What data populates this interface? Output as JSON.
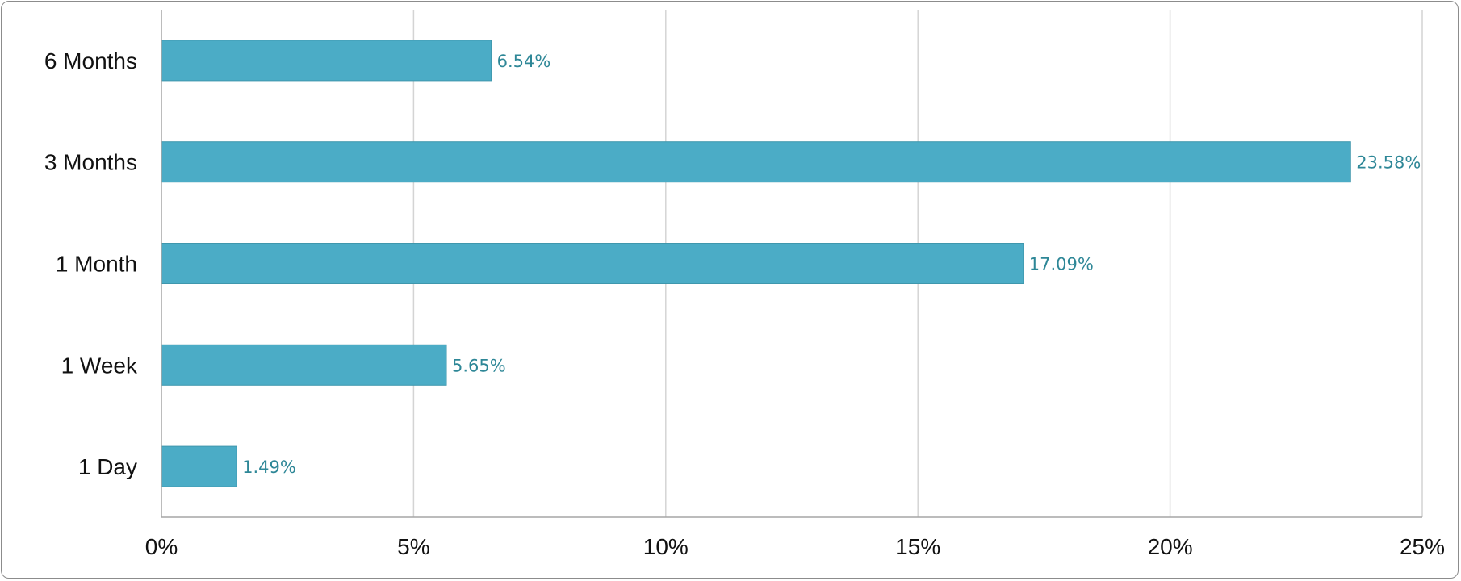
{
  "chart_data": {
    "type": "bar",
    "orientation": "horizontal",
    "title": "",
    "xlabel": "",
    "ylabel": "",
    "categories": [
      "6 Months",
      "3 Months",
      "1 Month",
      "1 Week",
      "1 Day"
    ],
    "values": [
      6.54,
      23.58,
      17.09,
      5.65,
      1.49
    ],
    "data_labels": [
      "6.54%",
      "23.58%",
      "17.09%",
      "5.65%",
      "1.49%"
    ],
    "xlim": [
      0,
      25
    ],
    "x_ticks": [
      0,
      5,
      10,
      15,
      20,
      25
    ],
    "x_tick_labels": [
      "0%",
      "5%",
      "10%",
      "15%",
      "20%",
      "25%"
    ],
    "grid": "vertical",
    "legend": "none",
    "colors": {
      "bar": "#4BACC6",
      "bar_edge": "#3f97ad",
      "data_label": "#2e8797",
      "gridline": "#d4d4d4",
      "axis": "#a6a6a6"
    }
  }
}
